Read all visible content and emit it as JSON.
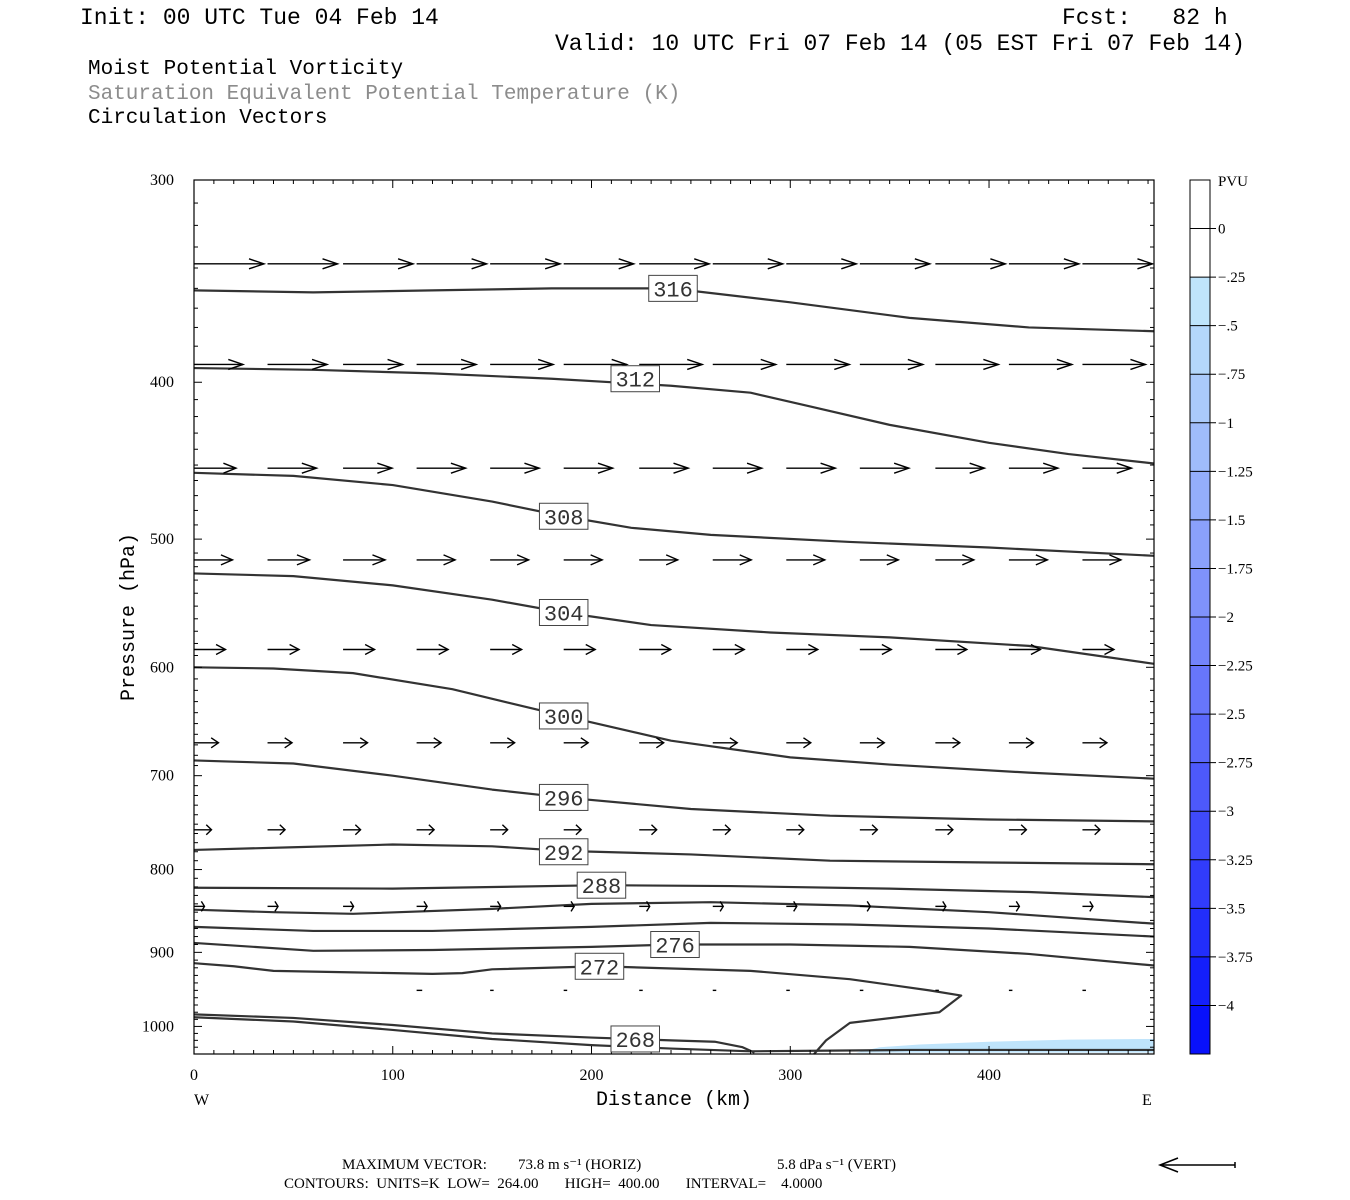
{
  "header": {
    "init": "Init: 00 UTC Tue 04 Feb 14",
    "fcst": "Fcst:   82 h",
    "valid": "Valid: 10 UTC Fri 07 Feb 14 (05 EST Fri 07 Feb 14)",
    "field1": "Moist Potential Vorticity",
    "field2": "Saturation Equivalent Potential Temperature (K)",
    "field3": "Circulation Vectors"
  },
  "footer": {
    "max_vector_label": "MAXIMUM VECTOR:",
    "max_horiz": "73.8 m s⁻¹ (HORIZ)",
    "max_vert": "5.8 dPa s⁻¹ (VERT)",
    "contours_line": "CONTOURS:  UNITS=K  LOW=  264.00       HIGH=  400.00       INTERVAL=    4.0000"
  },
  "colors": {
    "contour": "#333333",
    "arrow": "#000000",
    "pv_shade": "#bfe4fb"
  },
  "chart_data": {
    "type": "cross-section",
    "xlabel": "Distance (km)",
    "ylabel": "Pressure (hPa)",
    "xlim": [
      0,
      483
    ],
    "ylim": [
      1040,
      300
    ],
    "y_scale": "log",
    "x_ticks": [
      0,
      100,
      200,
      300,
      400
    ],
    "y_ticks": [
      300,
      400,
      500,
      600,
      700,
      800,
      900,
      1000
    ],
    "x_end_labels": {
      "left": "W",
      "right": "E"
    },
    "contours": [
      {
        "label": "316",
        "label_at": [
          241,
          350
        ],
        "points": [
          [
            0,
            351
          ],
          [
            60,
            352
          ],
          [
            120,
            351
          ],
          [
            180,
            350
          ],
          [
            240,
            350
          ],
          [
            300,
            357
          ],
          [
            360,
            365
          ],
          [
            420,
            370
          ],
          [
            483,
            372
          ]
        ]
      },
      {
        "label": "312",
        "label_at": [
          222,
          398
        ],
        "points": [
          [
            0,
            392
          ],
          [
            60,
            393
          ],
          [
            120,
            395
          ],
          [
            180,
            398
          ],
          [
            240,
            402
          ],
          [
            280,
            406
          ],
          [
            310,
            414
          ],
          [
            350,
            425
          ],
          [
            400,
            436
          ],
          [
            440,
            443
          ],
          [
            483,
            449
          ]
        ]
      },
      {
        "label": "308",
        "label_at": [
          186,
          484
        ],
        "points": [
          [
            0,
            455
          ],
          [
            50,
            457
          ],
          [
            100,
            463
          ],
          [
            150,
            474
          ],
          [
            186,
            484
          ],
          [
            220,
            492
          ],
          [
            260,
            497
          ],
          [
            330,
            502
          ],
          [
            400,
            506
          ],
          [
            483,
            512
          ]
        ]
      },
      {
        "label": "304",
        "label_at": [
          186,
          555
        ],
        "points": [
          [
            0,
            525
          ],
          [
            50,
            527
          ],
          [
            100,
            534
          ],
          [
            150,
            545
          ],
          [
            186,
            555
          ],
          [
            230,
            565
          ],
          [
            290,
            571
          ],
          [
            350,
            575
          ],
          [
            420,
            582
          ],
          [
            483,
            597
          ]
        ]
      },
      {
        "label": "300",
        "label_at": [
          186,
          643
        ],
        "points": [
          [
            0,
            600
          ],
          [
            40,
            601
          ],
          [
            80,
            605
          ],
          [
            130,
            619
          ],
          [
            186,
            643
          ],
          [
            240,
            666
          ],
          [
            300,
            682
          ],
          [
            350,
            689
          ],
          [
            420,
            697
          ],
          [
            483,
            703
          ]
        ]
      },
      {
        "label": "296",
        "label_at": [
          186,
          722
        ],
        "points": [
          [
            0,
            685
          ],
          [
            50,
            688
          ],
          [
            100,
            700
          ],
          [
            150,
            714
          ],
          [
            186,
            722
          ],
          [
            250,
            734
          ],
          [
            320,
            741
          ],
          [
            400,
            745
          ],
          [
            483,
            747
          ]
        ]
      },
      {
        "label": "292",
        "label_at": [
          186,
          780
        ],
        "points": [
          [
            0,
            778
          ],
          [
            50,
            775
          ],
          [
            100,
            772
          ],
          [
            150,
            774
          ],
          [
            186,
            779
          ],
          [
            250,
            783
          ],
          [
            320,
            790
          ],
          [
            400,
            792
          ],
          [
            483,
            794
          ]
        ]
      },
      {
        "label": "288",
        "label_at": [
          205,
          818
        ],
        "points": [
          [
            0,
            821
          ],
          [
            100,
            822
          ],
          [
            205,
            818
          ],
          [
            270,
            819
          ],
          [
            350,
            822
          ],
          [
            420,
            826
          ],
          [
            483,
            832
          ]
        ]
      },
      {
        "label": "",
        "label_at": null,
        "points": [
          [
            0,
            847
          ],
          [
            40,
            850
          ],
          [
            80,
            852
          ],
          [
            150,
            846
          ],
          [
            200,
            840
          ],
          [
            260,
            838
          ],
          [
            330,
            842
          ],
          [
            400,
            850
          ],
          [
            483,
            864
          ]
        ]
      },
      {
        "label": "",
        "label_at": null,
        "points": [
          [
            0,
            868
          ],
          [
            60,
            873
          ],
          [
            120,
            873
          ],
          [
            200,
            868
          ],
          [
            260,
            863
          ],
          [
            330,
            865
          ],
          [
            400,
            870
          ],
          [
            483,
            880
          ]
        ]
      },
      {
        "label": "276",
        "label_at": [
          242,
          890
        ],
        "points": [
          [
            0,
            888
          ],
          [
            60,
            898
          ],
          [
            120,
            897
          ],
          [
            200,
            893
          ],
          [
            242,
            890
          ],
          [
            300,
            890
          ],
          [
            360,
            893
          ],
          [
            420,
            902
          ],
          [
            483,
            917
          ]
        ]
      },
      {
        "label": "272",
        "label_at": [
          204,
          918
        ],
        "points": [
          [
            0,
            914
          ],
          [
            20,
            918
          ],
          [
            40,
            924
          ],
          [
            80,
            926
          ],
          [
            120,
            928
          ],
          [
            135,
            927
          ],
          [
            150,
            922
          ],
          [
            204,
            918
          ],
          [
            280,
            924
          ],
          [
            330,
            935
          ],
          [
            370,
            950
          ],
          [
            386,
            957
          ],
          [
            375,
            980
          ],
          [
            330,
            995
          ],
          [
            318,
            1020
          ],
          [
            312,
            1040
          ]
        ]
      },
      {
        "label": "268",
        "label_at": [
          222,
          1018
        ],
        "points": [
          [
            0,
            983
          ],
          [
            50,
            988
          ],
          [
            100,
            998
          ],
          [
            150,
            1010
          ],
          [
            200,
            1016
          ],
          [
            240,
            1020
          ],
          [
            262,
            1022
          ],
          [
            276,
            1030
          ],
          [
            282,
            1038
          ]
        ]
      },
      {
        "label": "",
        "label_at": null,
        "points": [
          [
            0,
            987
          ],
          [
            50,
            993
          ],
          [
            100,
            1005
          ],
          [
            150,
            1018
          ],
          [
            200,
            1027
          ],
          [
            240,
            1032
          ],
          [
            280,
            1036
          ],
          [
            320,
            1035
          ],
          [
            360,
            1034
          ],
          [
            400,
            1034
          ],
          [
            440,
            1034
          ],
          [
            483,
            1034
          ]
        ]
      }
    ],
    "pv_shading": {
      "bin": "-0.25 to -0.5 PVU",
      "points": [
        [
          333,
          1038
        ],
        [
          345,
          1030
        ],
        [
          365,
          1026
        ],
        [
          400,
          1022
        ],
        [
          440,
          1019
        ],
        [
          483,
          1018
        ],
        [
          483,
          1038
        ]
      ]
    },
    "vector_rows": [
      {
        "p": 338,
        "x": [
          0,
          37,
          75,
          112,
          149,
          186,
          224,
          261,
          298,
          335,
          373,
          410,
          447
        ],
        "u": [
          1,
          1,
          1,
          1,
          1,
          1,
          1,
          1,
          1,
          1,
          1,
          1,
          1
        ],
        "v": [
          0,
          0,
          0,
          0,
          0,
          0,
          0,
          0,
          0,
          0,
          0,
          0,
          0
        ]
      },
      {
        "p": 390,
        "x": [
          0,
          37,
          75,
          112,
          149,
          186,
          224,
          261,
          298,
          335,
          373,
          410,
          447
        ],
        "u": [
          0.7,
          0.85,
          0.85,
          0.85,
          0.9,
          0.9,
          0.9,
          0.9,
          0.9,
          0.9,
          0.9,
          0.9,
          0.9
        ],
        "v": [
          0,
          0,
          0,
          0,
          0,
          0,
          0,
          0,
          0,
          0,
          0,
          0,
          0
        ]
      },
      {
        "p": 452,
        "x": [
          0,
          37,
          75,
          112,
          149,
          186,
          224,
          261,
          298,
          335,
          373,
          410,
          447
        ],
        "u": [
          0.6,
          0.7,
          0.7,
          0.7,
          0.7,
          0.7,
          0.7,
          0.7,
          0.7,
          0.7,
          0.7,
          0.7,
          0.7
        ],
        "v": [
          0,
          0,
          0,
          0,
          0,
          0,
          0,
          0,
          0,
          0,
          0,
          0,
          0
        ]
      },
      {
        "p": 515,
        "x": [
          0,
          37,
          75,
          112,
          149,
          186,
          224,
          261,
          298,
          335,
          373,
          410,
          447
        ],
        "u": [
          0.55,
          0.6,
          0.6,
          0.55,
          0.55,
          0.55,
          0.55,
          0.55,
          0.55,
          0.55,
          0.55,
          0.55,
          0.55
        ],
        "v": [
          0,
          0,
          0,
          0,
          0,
          0,
          0,
          0,
          0,
          0,
          0,
          0,
          0
        ]
      },
      {
        "p": 585,
        "x": [
          0,
          37,
          75,
          112,
          149,
          186,
          224,
          261,
          298,
          335,
          373,
          410,
          447
        ],
        "u": [
          0.45,
          0.45,
          0.45,
          0.45,
          0.45,
          0.45,
          0.45,
          0.45,
          0.45,
          0.45,
          0.45,
          0.45,
          0.45
        ],
        "v": [
          0,
          0,
          0,
          0,
          0,
          0,
          0,
          0,
          0,
          0,
          0,
          0,
          0
        ]
      },
      {
        "p": 668,
        "x": [
          0,
          37,
          75,
          112,
          149,
          186,
          224,
          261,
          298,
          335,
          373,
          410,
          447
        ],
        "u": [
          0.35,
          0.35,
          0.35,
          0.35,
          0.35,
          0.35,
          0.35,
          0.35,
          0.35,
          0.35,
          0.35,
          0.35,
          0.35
        ],
        "v": [
          0,
          0,
          0,
          0,
          0,
          0,
          0,
          0,
          0,
          0,
          0,
          0,
          0
        ]
      },
      {
        "p": 756,
        "x": [
          0,
          37,
          75,
          112,
          149,
          186,
          224,
          261,
          298,
          335,
          373,
          410,
          447
        ],
        "u": [
          0.25,
          0.25,
          0.25,
          0.25,
          0.25,
          0.25,
          0.25,
          0.25,
          0.25,
          0.25,
          0.25,
          0.25,
          0.25
        ],
        "v": [
          0,
          0,
          0,
          0,
          0,
          0,
          0,
          0,
          0,
          0,
          0,
          0,
          0
        ]
      },
      {
        "p": 843,
        "x": [
          0,
          37,
          75,
          112,
          149,
          186,
          224,
          261,
          298,
          335,
          373,
          410,
          447
        ],
        "u": [
          0.15,
          0.15,
          0.15,
          0.15,
          0.15,
          0.15,
          0.15,
          0.15,
          0.15,
          0.15,
          0.15,
          0.15,
          0.15
        ],
        "v": [
          0,
          0,
          0,
          0,
          0,
          0,
          0,
          0,
          0,
          0,
          0,
          0,
          0
        ]
      },
      {
        "p": 950,
        "x": [
          112,
          149,
          186,
          224,
          261,
          298,
          335,
          373,
          410,
          447
        ],
        "u": [
          0.08,
          0.05,
          0.05,
          0.05,
          0.05,
          0.05,
          0.05,
          0.05,
          0.05,
          0.05
        ],
        "v": [
          0,
          0,
          0,
          0,
          0,
          0,
          0,
          0,
          0,
          0
        ]
      }
    ],
    "colorbar": {
      "label": "PVU",
      "levels": [
        "0",
        "-.25",
        "-.5",
        "-.75",
        "-1",
        "-1.25",
        "-1.5",
        "-1.75",
        "-2",
        "-2.25",
        "-2.5",
        "-2.75",
        "-3",
        "-3.25",
        "-3.5",
        "-3.75",
        "-4"
      ],
      "colors": [
        "#ffffff",
        "#ffffff",
        "#bfe4fb",
        "#b4d7fb",
        "#aacafb",
        "#9fbcfb",
        "#94aefb",
        "#8aa0fb",
        "#7f92fb",
        "#7384fb",
        "#6776fb",
        "#5a68fb",
        "#4d59fb",
        "#3f4afb",
        "#313cfb",
        "#222efb",
        "#141ffb",
        "#0811fb"
      ]
    }
  }
}
